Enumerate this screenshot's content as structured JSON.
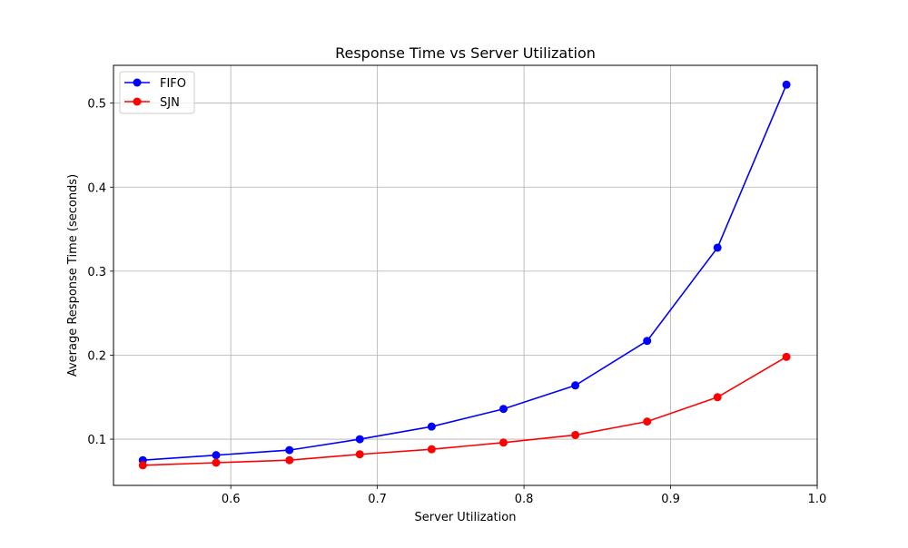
{
  "chart_data": {
    "type": "line",
    "title": "Response Time vs Server Utilization",
    "xlabel": "Server Utilization",
    "ylabel": "Average Response Time (seconds)",
    "xlim": [
      0.52,
      1.0
    ],
    "ylim": [
      0.045,
      0.545
    ],
    "x_ticks": [
      0.6,
      0.7,
      0.8,
      0.9,
      1.0
    ],
    "x_tick_labels": [
      "0.6",
      "0.7",
      "0.8",
      "0.9",
      "1.0"
    ],
    "y_ticks": [
      0.1,
      0.2,
      0.3,
      0.4,
      0.5
    ],
    "y_tick_labels": [
      "0.1",
      "0.2",
      "0.3",
      "0.4",
      "0.5"
    ],
    "grid": true,
    "legend_position": "top-left",
    "x": [
      0.54,
      0.59,
      0.64,
      0.688,
      0.737,
      0.786,
      0.835,
      0.884,
      0.932,
      0.979
    ],
    "series": [
      {
        "name": "FIFO",
        "color": "#0000ff",
        "marker": "circle",
        "values": [
          0.075,
          0.081,
          0.087,
          0.1,
          0.115,
          0.136,
          0.164,
          0.217,
          0.328,
          0.522
        ]
      },
      {
        "name": "SJN",
        "color": "#ff0000",
        "marker": "circle",
        "values": [
          0.069,
          0.072,
          0.075,
          0.082,
          0.088,
          0.096,
          0.105,
          0.121,
          0.15,
          0.198
        ]
      }
    ]
  }
}
